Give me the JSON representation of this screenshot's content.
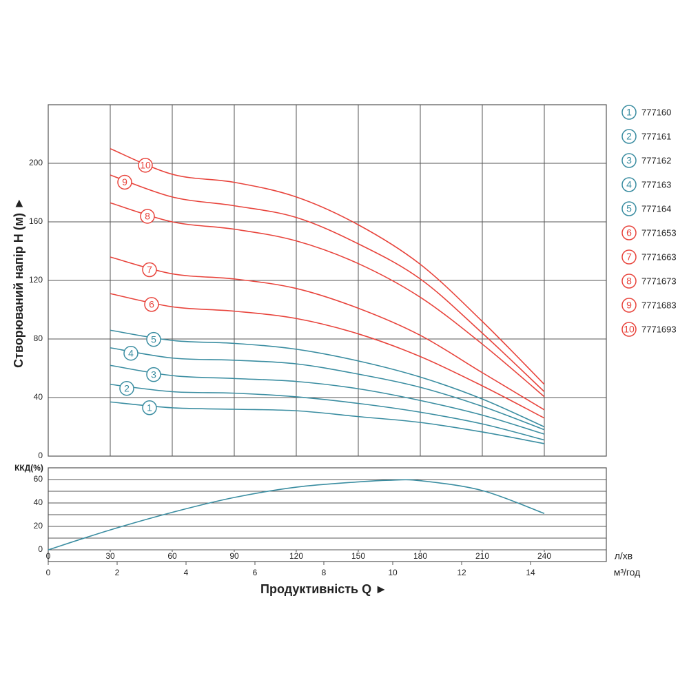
{
  "chart_data": [
    {
      "type": "line",
      "y_label": "Створюваний напір H (м) ►",
      "xlim": [
        0,
        270
      ],
      "ylim": [
        0,
        240
      ],
      "xticks": [
        30,
        60,
        90,
        120,
        150,
        180,
        210,
        240
      ],
      "yticks": [
        0,
        40,
        80,
        120,
        160,
        200
      ],
      "grid": true,
      "legend": "right",
      "x": [
        30,
        60,
        90,
        120,
        150,
        180,
        210,
        240
      ],
      "series": [
        {
          "name": "777160",
          "label": "1",
          "color": "#3a8da1",
          "values": [
            37,
            33,
            32,
            31,
            27,
            23,
            16.5,
            8.5
          ]
        },
        {
          "name": "777161",
          "label": "2",
          "color": "#3a8da1",
          "values": [
            49,
            44,
            43,
            40.5,
            36,
            30,
            22,
            11
          ]
        },
        {
          "name": "777162",
          "label": "3",
          "color": "#3a8da1",
          "values": [
            62,
            55,
            53,
            51,
            46,
            38,
            28,
            15
          ]
        },
        {
          "name": "777163",
          "label": "4",
          "color": "#3a8da1",
          "values": [
            74,
            67,
            65.5,
            63,
            56,
            47,
            34,
            18
          ]
        },
        {
          "name": "777164",
          "label": "5",
          "color": "#3a8da1",
          "values": [
            86,
            79,
            77,
            73,
            65,
            54,
            39,
            20
          ]
        },
        {
          "name": "7771653",
          "label": "6",
          "color": "#e8443c",
          "values": [
            111,
            102,
            99,
            94,
            83.5,
            68,
            48,
            26
          ]
        },
        {
          "name": "7771663",
          "label": "7",
          "color": "#e8443c",
          "values": [
            136,
            124.5,
            121,
            114.5,
            101,
            82.5,
            57,
            31.6
          ]
        },
        {
          "name": "7771673",
          "label": "8",
          "color": "#e8443c",
          "values": [
            173,
            160,
            155,
            147,
            131.5,
            108.5,
            76.5,
            40.6
          ]
        },
        {
          "name": "7771683",
          "label": "9",
          "color": "#e8443c",
          "values": [
            192,
            177,
            171,
            163,
            145,
            121,
            84,
            44
          ]
        },
        {
          "name": "7771693",
          "label": "10",
          "color": "#e8443c",
          "values": [
            210,
            192.5,
            187,
            177,
            158,
            131,
            92,
            49
          ]
        }
      ]
    },
    {
      "type": "line",
      "y_label": "ККД(%)",
      "x_label": "Продуктивність Q ►",
      "x_unit": "л/хв",
      "x2_unit": "м³/год",
      "xlim": [
        0,
        270
      ],
      "ylim": [
        0,
        70
      ],
      "xticks": [
        0,
        30,
        60,
        90,
        120,
        150,
        180,
        210,
        240
      ],
      "yticks": [
        0,
        20,
        40,
        60
      ],
      "minor_yticks": [
        10,
        30,
        50
      ],
      "grid": true,
      "x2lim": [
        0,
        16.2
      ],
      "x2ticks": [
        0,
        2,
        4,
        6,
        8,
        10,
        12,
        14
      ],
      "x": [
        0,
        30,
        60,
        90,
        120,
        150,
        165,
        180,
        210,
        240
      ],
      "values": [
        0,
        17,
        32,
        44.7,
        53.5,
        58,
        59.4,
        59,
        50.6,
        31
      ],
      "color": "#3a8da1"
    }
  ]
}
